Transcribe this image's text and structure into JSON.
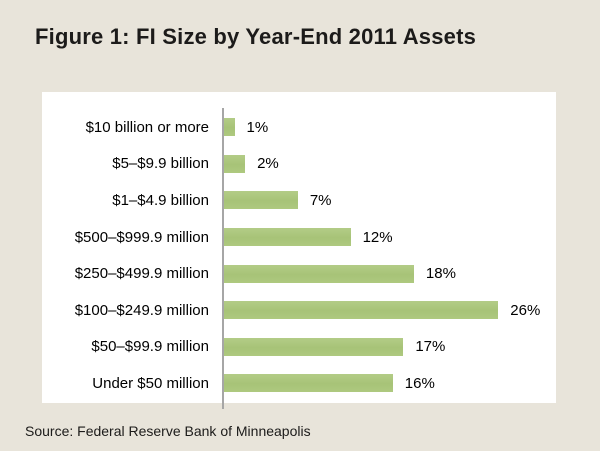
{
  "title": "Figure 1: FI Size by Year-End 2011 Assets",
  "source": "Source: Federal Reserve Bank of Minneapolis",
  "colors": {
    "background": "#e8e4da",
    "panel": "#ffffff",
    "bar_green": "#abc77e",
    "axis_gray": "#a6a6a6",
    "text": "#1a1a1a"
  },
  "chart_data": {
    "type": "bar",
    "orientation": "horizontal",
    "title": "Figure 1: FI Size by Year-End 2011 Assets",
    "xlabel": "",
    "ylabel": "",
    "categories": [
      "$10 billion or more",
      "$5–$9.9 billion",
      "$1–$4.9 billion",
      "$500–$999.9 million",
      "$250–$499.9 million",
      "$100–$249.9 million",
      "$50–$99.9 million",
      "Under $50 million"
    ],
    "values": [
      1,
      2,
      7,
      12,
      18,
      26,
      17,
      16
    ],
    "value_labels": [
      "1%",
      "2%",
      "7%",
      "12%",
      "18%",
      "26%",
      "17%",
      "16%"
    ],
    "unit": "%",
    "xlim": [
      0,
      30
    ],
    "grid": false,
    "legend": null,
    "source_note": "Source: Federal Reserve Bank of Minneapolis"
  }
}
